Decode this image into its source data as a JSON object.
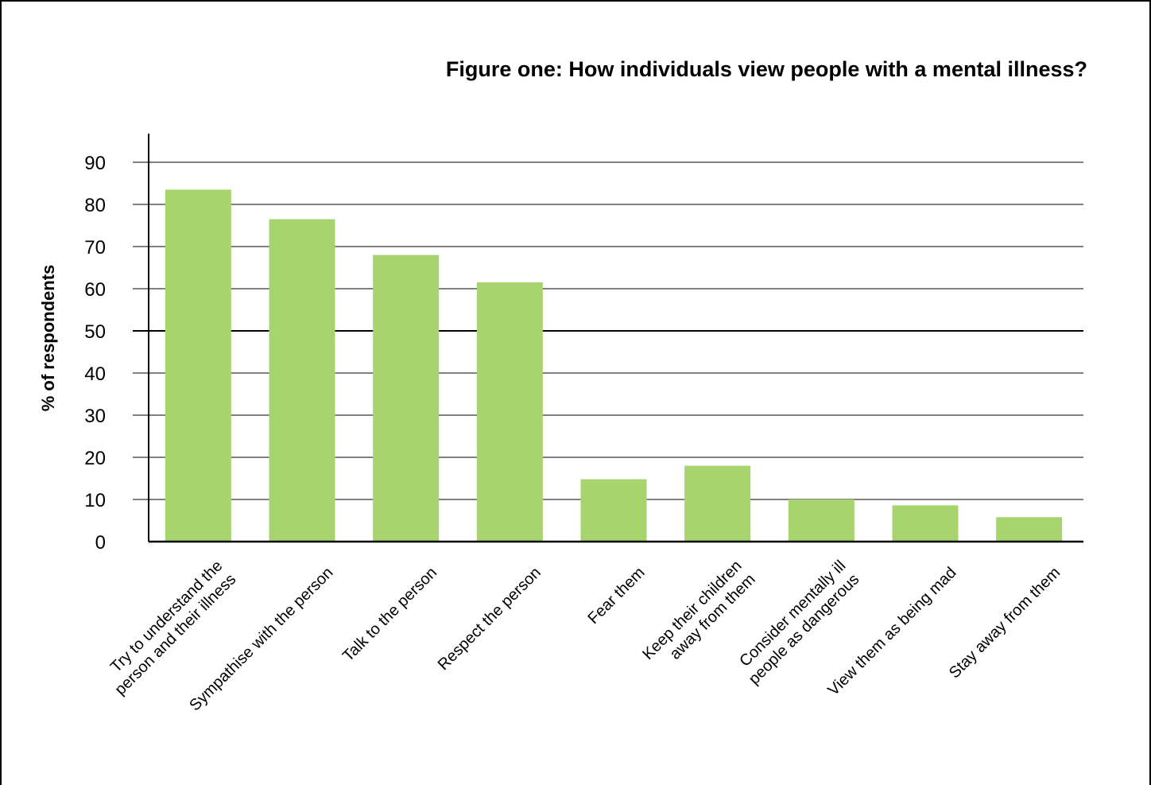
{
  "chart_data": {
    "type": "bar",
    "title": "Figure one: How individuals view people with a mental illness?",
    "xlabel": "",
    "ylabel": "% of respondents",
    "ylim": [
      0,
      90
    ],
    "yticks": [
      0,
      10,
      20,
      30,
      40,
      50,
      60,
      70,
      80,
      90
    ],
    "grid": true,
    "legend": "none",
    "bar_color": "#a8d46f",
    "categories": [
      [
        "Try to understand the",
        "person and their illness"
      ],
      [
        "Sympathise with the person"
      ],
      [
        "Talk to the person"
      ],
      [
        "Respect the person"
      ],
      [
        "Fear them"
      ],
      [
        "Keep their children",
        "away from them"
      ],
      [
        "Consider mentally ill",
        "people as dangerous"
      ],
      [
        "View them as being mad"
      ],
      [
        "Stay away from them"
      ]
    ],
    "values": [
      83.5,
      76.5,
      68,
      61.5,
      14.8,
      18,
      10,
      8.6,
      5.8
    ]
  }
}
